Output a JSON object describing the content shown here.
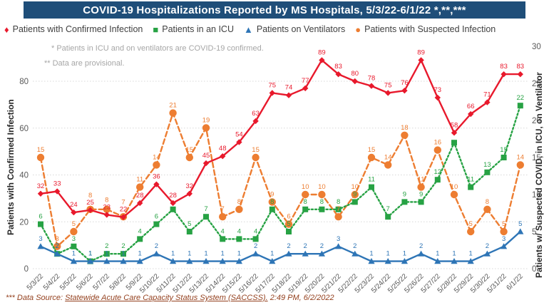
{
  "title": "COVID-19 Hospitalizations Reported by MS Hospitals, 5/3/22-6/1/22 *,**,***",
  "title_bar_color": "#1f4e79",
  "notes": {
    "note1": "* Patients in ICU and on ventilators are COVID-19 confirmed.",
    "note2": "** Data are provisional."
  },
  "footer": {
    "prefix": "*** Data Source: ",
    "source_underlined": "Statewide Acute Care Capacity Status System (SACCSS).",
    "suffix": " 2:49 PM, 6/2/2022"
  },
  "legend": [
    {
      "label": "Patients with Confirmed Infection",
      "marker": "diamond",
      "glyph": "♦",
      "color": "#e8192c"
    },
    {
      "label": "Patients in an ICU",
      "marker": "square",
      "glyph": "■",
      "color": "#27a244"
    },
    {
      "label": "Patients on Ventilators",
      "marker": "triangle",
      "glyph": "▲",
      "color": "#2e75b6"
    },
    {
      "label": "Patients with Suspected Infection",
      "marker": "circle",
      "glyph": "●",
      "color": "#ed7d31"
    }
  ],
  "chart_data": {
    "type": "line",
    "x_labels": [
      "5/3/22",
      "5/4/22",
      "5/5/22",
      "5/6/22",
      "5/7/22",
      "5/8/22",
      "5/9/22",
      "5/10/22",
      "5/11/22",
      "5/12/22",
      "5/13/22",
      "5/14/22",
      "5/15/22",
      "5/16/22",
      "5/17/22",
      "5/18/22",
      "5/19/22",
      "5/20/22",
      "5/21/22",
      "5/22/22",
      "5/23/22",
      "5/24/22",
      "5/25/22",
      "5/26/22",
      "5/27/22",
      "5/28/22",
      "5/29/22",
      "5/30/22",
      "5/31/22",
      "6/1/22"
    ],
    "left_axis": {
      "title": "Patients with Confirmed Infection",
      "ticks": [
        0,
        20,
        40,
        60,
        80
      ],
      "range": [
        0,
        93
      ]
    },
    "right_axis": {
      "title": "Patients w/ Suspected COVID, in ICU, on Ventilator",
      "ticks": [
        0,
        5,
        10,
        15,
        20,
        25,
        30
      ],
      "range": [
        0,
        30
      ]
    },
    "grid": "horizontal-dotted",
    "legend_position": "top",
    "series": [
      {
        "name": "Patients with Confirmed Infection",
        "axis": "left",
        "color": "#e8192c",
        "marker": "diamond",
        "line": "solid",
        "values": [
          32,
          33,
          24,
          25,
          23,
          22,
          28,
          36,
          28,
          32,
          45,
          48,
          54,
          63,
          75,
          74,
          77,
          89,
          83,
          80,
          78,
          75,
          76,
          89,
          73,
          58,
          66,
          71,
          83,
          83
        ]
      },
      {
        "name": "Patients in an ICU",
        "axis": "right",
        "color": "#27a244",
        "marker": "square",
        "line": "dotted",
        "values": [
          6,
          2,
          3,
          1,
          2,
          2,
          4,
          6,
          8,
          5,
          7,
          4,
          4,
          4,
          8,
          5,
          8,
          8,
          8,
          9,
          11,
          7,
          9,
          9,
          12,
          17,
          11,
          13,
          15,
          22
        ]
      },
      {
        "name": "Patients on Ventilators",
        "axis": "right",
        "color": "#2e75b6",
        "marker": "triangle",
        "line": "solid",
        "values": [
          3,
          2,
          1,
          1,
          1,
          1,
          1,
          2,
          1,
          1,
          1,
          1,
          1,
          2,
          1,
          2,
          2,
          2,
          3,
          2,
          1,
          1,
          1,
          2,
          1,
          1,
          1,
          2,
          3,
          5
        ]
      },
      {
        "name": "Patients with Suspected Infection",
        "axis": "right",
        "color": "#ed7d31",
        "marker": "circle",
        "line": "dashed",
        "values": [
          15,
          3,
          5,
          8,
          8,
          7,
          11,
          14,
          21,
          15,
          19,
          7,
          8,
          15,
          9,
          6,
          10,
          10,
          7,
          10,
          15,
          14,
          18,
          11,
          16,
          10,
          5,
          8,
          5,
          14
        ]
      }
    ]
  }
}
